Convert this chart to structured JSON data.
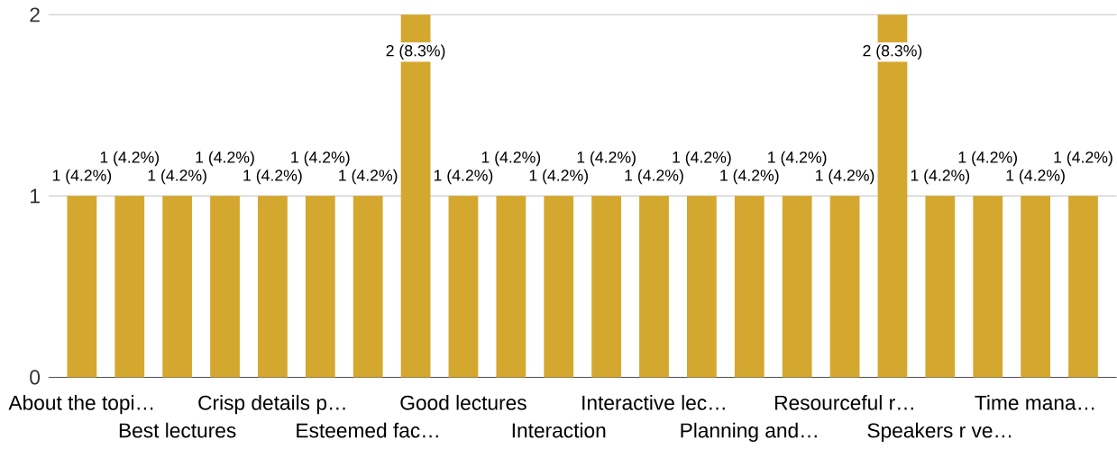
{
  "chart_data": {
    "type": "bar",
    "categories": [
      "About the topi…",
      null,
      "Best lectures",
      null,
      "Crisp details p…",
      null,
      "Esteemed fac…",
      null,
      "Good lectures",
      null,
      "Interaction",
      null,
      "Interactive lec…",
      null,
      "Planning and…",
      null,
      "Resourceful r…",
      null,
      "Speakers r ve…",
      null,
      "Time mana…",
      null
    ],
    "values": [
      1,
      1,
      1,
      1,
      1,
      1,
      1,
      2,
      1,
      1,
      1,
      1,
      1,
      1,
      1,
      1,
      1,
      2,
      1,
      1,
      1,
      1
    ],
    "value_labels": [
      "1 (4.2%)",
      "1 (4.2%)",
      "1 (4.2%)",
      "1 (4.2%)",
      "1 (4.2%)",
      "1 (4.2%)",
      "1 (4.2%)",
      "2 (8.3%)",
      "1 (4.2%)",
      "1 (4.2%)",
      "1 (4.2%)",
      "1 (4.2%)",
      "1 (4.2%)",
      "1 (4.2%)",
      "1 (4.2%)",
      "1 (4.2%)",
      "1 (4.2%)",
      "2 (8.3%)",
      "1 (4.2%)",
      "1 (4.2%)",
      "1 (4.2%)",
      "1 (4.2%)"
    ],
    "color": "#d4a82f",
    "ylim": [
      0,
      2
    ],
    "yticks": [
      0,
      1,
      2
    ],
    "grid": "y"
  }
}
